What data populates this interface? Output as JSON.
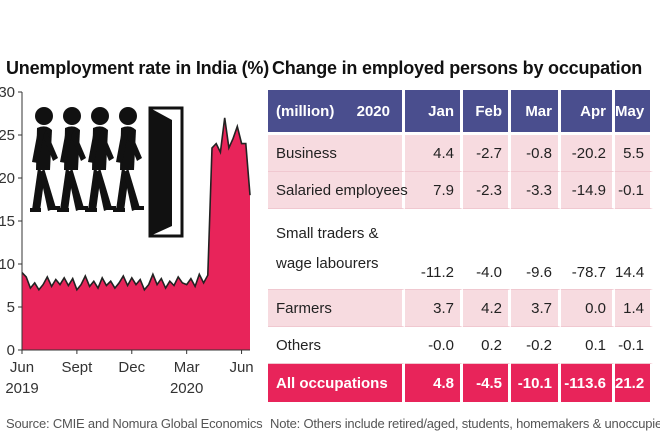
{
  "left_title": "Unemployment rate in India (%)",
  "right_title": "Change in employed persons by occupation",
  "left_source": "Source: CMIE and Nomura Global Economics",
  "right_source": "Note: Others include retired/aged, students, homemakers & unoccupied",
  "colors": {
    "area": "#e8245a",
    "line": "#222222",
    "header": "#4a4e8e",
    "alt_row": "#f7dbe0",
    "total_row": "#e8245a"
  },
  "pictogram": {
    "icons": [
      "walking-person-icon",
      "walking-person-icon",
      "walking-person-icon",
      "walking-person-icon",
      "open-door-icon"
    ]
  },
  "chart_data": [
    {
      "type": "area",
      "title": "Unemployment rate in India (%)",
      "ylim": [
        0,
        30
      ],
      "yticks": [
        0,
        5,
        10,
        15,
        20,
        25,
        30
      ],
      "xticks": [
        {
          "label": "Jun",
          "sub": "2019",
          "week": 0
        },
        {
          "label": "Sept",
          "sub": "",
          "week": 13
        },
        {
          "label": "Dec",
          "sub": "",
          "week": 26
        },
        {
          "label": "Mar",
          "sub": "2020",
          "week": 39
        },
        {
          "label": "Jun",
          "sub": "",
          "week": 52
        }
      ],
      "x": [
        0,
        1,
        2,
        3,
        4,
        5,
        6,
        7,
        8,
        9,
        10,
        11,
        12,
        13,
        14,
        15,
        16,
        17,
        18,
        19,
        20,
        21,
        22,
        23,
        24,
        25,
        26,
        27,
        28,
        29,
        30,
        31,
        32,
        33,
        34,
        35,
        36,
        37,
        38,
        39,
        40,
        41,
        42,
        43,
        44,
        45,
        46,
        47,
        48,
        49,
        50,
        51,
        52,
        53,
        54
      ],
      "values": [
        9.0,
        8.5,
        7.2,
        7.8,
        7.0,
        7.6,
        8.5,
        7.4,
        8.2,
        7.6,
        8.4,
        7.5,
        8.3,
        7.0,
        7.6,
        8.6,
        7.4,
        8.0,
        7.2,
        8.4,
        7.5,
        8.0,
        7.2,
        7.8,
        8.6,
        7.5,
        8.4,
        7.6,
        8.2,
        7.0,
        7.6,
        8.8,
        7.6,
        8.3,
        7.2,
        8.0,
        7.5,
        8.5,
        7.8,
        7.6,
        8.3,
        7.4,
        8.8,
        7.8,
        8.7,
        23.5,
        24.0,
        23.0,
        27.0,
        23.5,
        24.6,
        26.0,
        24.0,
        24.0,
        18.0
      ],
      "grid": false,
      "legend": "none"
    },
    {
      "type": "table",
      "title": "Change in employed persons by occupation",
      "header_label": "(million)",
      "header_year": "2020",
      "columns": [
        "Jan",
        "Feb",
        "Mar",
        "Apr",
        "May"
      ],
      "rows": [
        {
          "name": "Business",
          "values": [
            "4.4",
            "-2.7",
            "-0.8",
            "-20.2",
            "5.5"
          ],
          "style": "alt"
        },
        {
          "name": "Salaried employees",
          "values": [
            "7.9",
            "-2.3",
            "-3.3",
            "-14.9",
            "-0.1"
          ],
          "style": "alt"
        },
        {
          "name": "Small traders & wage labourers",
          "values": [
            "-11.2",
            "-4.0",
            "-9.6",
            "-78.7",
            "14.4"
          ],
          "style": "plain"
        },
        {
          "name": "Farmers",
          "values": [
            "3.7",
            "4.2",
            "3.7",
            "0.0",
            "1.4"
          ],
          "style": "alt"
        },
        {
          "name": "Others",
          "values": [
            "-0.0",
            "0.2",
            "-0.2",
            "0.1",
            "-0.1"
          ],
          "style": "plain"
        },
        {
          "name": "All occupations",
          "values": [
            "4.8",
            "-4.5",
            "-10.1",
            "-113.6",
            "21.2"
          ],
          "style": "total"
        }
      ]
    }
  ]
}
